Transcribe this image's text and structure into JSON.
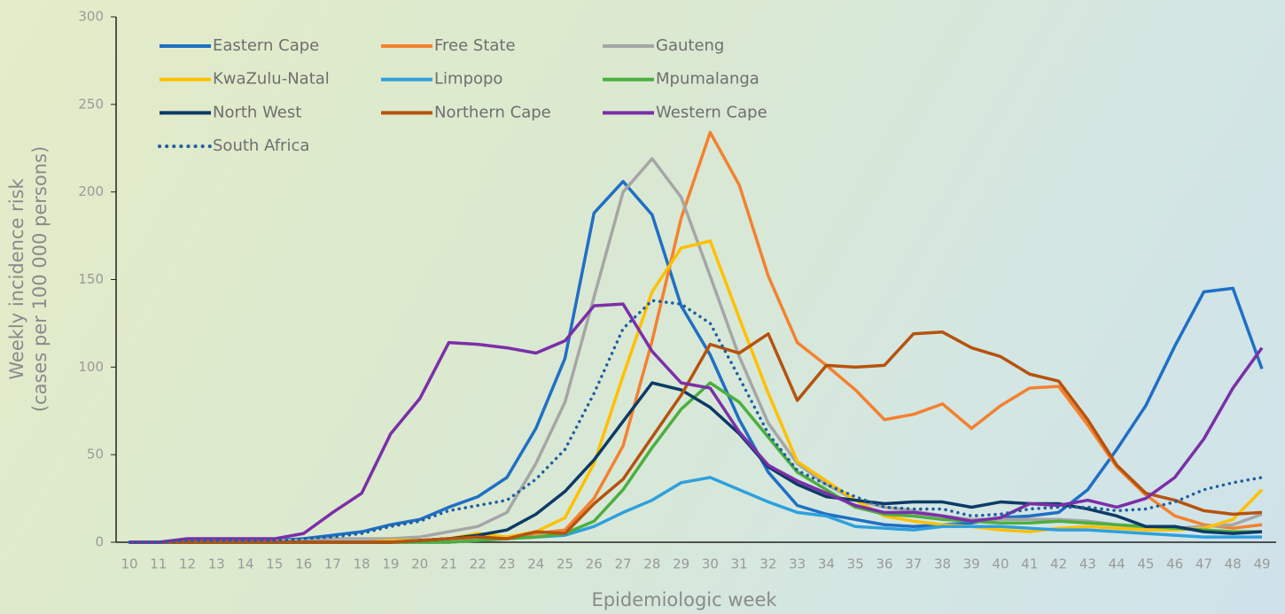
{
  "chart_data": {
    "type": "line",
    "xlabel": "Epidemiologic week",
    "ylabel": [
      "Weekly incidence risk",
      "(cases per 100 000 persons)"
    ],
    "categories": [
      10,
      11,
      12,
      13,
      14,
      15,
      16,
      17,
      18,
      19,
      20,
      21,
      22,
      23,
      24,
      25,
      26,
      27,
      28,
      29,
      30,
      31,
      32,
      33,
      34,
      35,
      36,
      37,
      38,
      39,
      40,
      41,
      42,
      43,
      44,
      45,
      46,
      47,
      48,
      49
    ],
    "ylim": [
      0,
      300
    ],
    "yticks": [
      0,
      50,
      100,
      150,
      200,
      250,
      300
    ],
    "grid": false,
    "legend": "top-left",
    "series": [
      {
        "name": "Eastern Cape",
        "color": "#1f6fc5",
        "values": [
          0,
          0,
          1,
          1,
          1,
          1,
          2,
          4,
          6,
          10,
          13,
          20,
          26,
          37,
          65,
          105,
          188,
          206,
          187,
          135,
          107,
          70,
          40,
          21,
          16,
          13,
          10,
          9,
          10,
          11,
          14,
          15,
          17,
          30,
          53,
          78,
          112,
          143,
          145,
          99
        ]
      },
      {
        "name": "Free State",
        "color": "#f4812f",
        "values": [
          0,
          0,
          0,
          0,
          0,
          0,
          0,
          0,
          0,
          0,
          1,
          2,
          3,
          3,
          5,
          7,
          25,
          55,
          115,
          185,
          234,
          204,
          152,
          114,
          101,
          87,
          70,
          73,
          79,
          65,
          78,
          88,
          89,
          67,
          43,
          27,
          15,
          10,
          8,
          10
        ]
      },
      {
        "name": "Gauteng",
        "color": "#a6a6a6",
        "values": [
          0,
          0,
          1,
          1,
          1,
          1,
          1,
          2,
          2,
          2,
          3,
          6,
          9,
          17,
          45,
          80,
          140,
          200,
          219,
          197,
          152,
          106,
          68,
          45,
          33,
          24,
          20,
          18,
          15,
          13,
          13,
          13,
          13,
          12,
          10,
          8,
          8,
          9,
          10,
          16
        ]
      },
      {
        "name": "KwaZulu-Natal",
        "color": "#ffc000",
        "values": [
          0,
          0,
          0,
          0,
          0,
          0,
          0,
          0,
          0,
          1,
          1,
          2,
          5,
          3,
          6,
          14,
          45,
          95,
          143,
          168,
          172,
          128,
          85,
          46,
          35,
          24,
          15,
          12,
          10,
          9,
          7,
          6,
          8,
          9,
          8,
          7,
          7,
          8,
          13,
          30
        ]
      },
      {
        "name": "Limpopo",
        "color": "#2ea0dd",
        "values": [
          0,
          0,
          0,
          0,
          0,
          0,
          0,
          0,
          0,
          0,
          0,
          0,
          1,
          2,
          3,
          4,
          9,
          17,
          24,
          34,
          37,
          30,
          23,
          17,
          15,
          9,
          8,
          7,
          9,
          9,
          9,
          8,
          7,
          7,
          6,
          5,
          4,
          3,
          3,
          3
        ]
      },
      {
        "name": "Mpumalanga",
        "color": "#4caf3f",
        "values": [
          0,
          0,
          0,
          0,
          0,
          0,
          0,
          0,
          0,
          0,
          0,
          0,
          1,
          2,
          3,
          5,
          12,
          30,
          54,
          76,
          91,
          80,
          60,
          40,
          30,
          20,
          16,
          15,
          13,
          12,
          11,
          11,
          12,
          11,
          10,
          9,
          8,
          7,
          6,
          6
        ]
      },
      {
        "name": "North West",
        "color": "#0d3a66",
        "values": [
          0,
          0,
          0,
          0,
          0,
          0,
          0,
          0,
          0,
          0,
          1,
          2,
          4,
          7,
          16,
          29,
          47,
          69,
          91,
          87,
          77,
          62,
          43,
          33,
          26,
          24,
          22,
          23,
          23,
          20,
          23,
          22,
          22,
          19,
          15,
          9,
          9,
          6,
          5,
          6
        ]
      },
      {
        "name": "Northern Cape",
        "color": "#b5530e",
        "values": [
          0,
          0,
          0,
          0,
          0,
          0,
          0,
          0,
          0,
          0,
          1,
          2,
          3,
          2,
          6,
          5,
          22,
          36,
          60,
          84,
          113,
          108,
          119,
          81,
          101,
          100,
          101,
          119,
          120,
          111,
          106,
          96,
          92,
          70,
          44,
          28,
          24,
          18,
          16,
          17
        ]
      },
      {
        "name": "Western Cape",
        "color": "#7b2fa8",
        "values": [
          0,
          0,
          2,
          2,
          2,
          2,
          5,
          17,
          28,
          62,
          82,
          114,
          113,
          111,
          108,
          115,
          135,
          136,
          109,
          91,
          88,
          63,
          44,
          35,
          28,
          21,
          17,
          17,
          15,
          12,
          14,
          22,
          21,
          24,
          20,
          25,
          37,
          59,
          88,
          111
        ]
      },
      {
        "name": "South Africa",
        "color": "#1e5fa0",
        "style": "dotted",
        "values": [
          0,
          0,
          1,
          1,
          1,
          1,
          2,
          3,
          5,
          9,
          12,
          18,
          21,
          24,
          36,
          53,
          85,
          122,
          138,
          136,
          125,
          94,
          62,
          41,
          33,
          26,
          20,
          19,
          19,
          15,
          16,
          19,
          20,
          20,
          18,
          19,
          23,
          30,
          34,
          37
        ]
      }
    ]
  }
}
